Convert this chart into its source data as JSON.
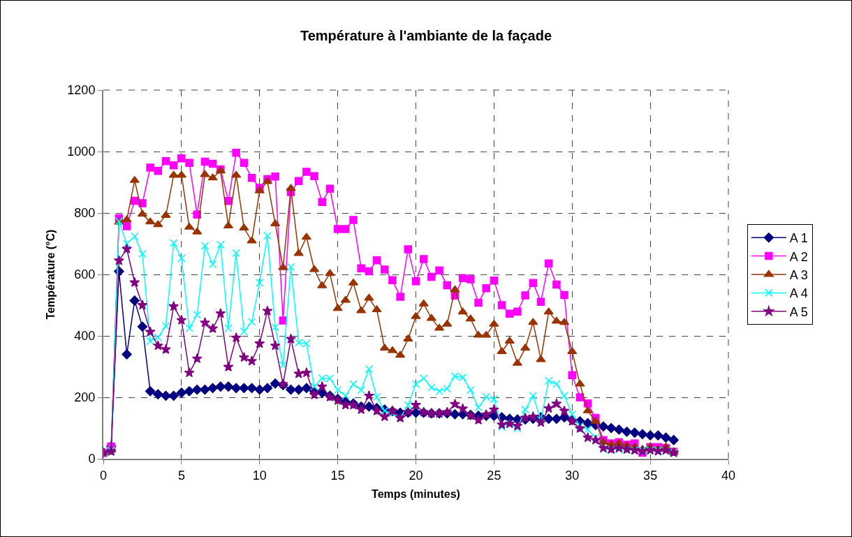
{
  "chart_data": {
    "type": "line",
    "title": "Température à l'ambiante de la façade",
    "xlabel": "Temps (minutes)",
    "ylabel": "Température (°C)",
    "x": [
      0,
      0.5,
      1,
      1.5,
      2,
      2.5,
      3,
      3.5,
      4,
      4.5,
      5,
      5.5,
      6,
      6.5,
      7,
      7.5,
      8,
      8.5,
      9,
      9.5,
      10,
      10.5,
      11,
      11.5,
      12,
      12.5,
      13,
      13.5,
      14,
      14.5,
      15,
      15.5,
      16,
      16.5,
      17,
      17.5,
      18,
      18.5,
      19,
      19.5,
      20,
      20.5,
      21,
      21.5,
      22,
      22.5,
      23,
      23.5,
      24,
      24.5,
      25,
      25.5,
      26,
      26.5,
      27,
      27.5,
      28,
      28.5,
      29,
      29.5,
      30,
      30.5,
      31,
      31.5,
      32,
      32.5,
      33,
      33.5,
      34,
      34.5,
      35,
      35.5,
      36,
      36.5
    ],
    "series": [
      {
        "name": "A 1",
        "color": "#000080",
        "marker": "diamond",
        "values": [
          20,
          40,
          610,
          340,
          515,
          430,
          220,
          210,
          205,
          205,
          215,
          220,
          225,
          225,
          230,
          235,
          235,
          230,
          230,
          230,
          225,
          230,
          245,
          240,
          225,
          225,
          230,
          220,
          215,
          205,
          195,
          185,
          180,
          170,
          170,
          165,
          160,
          155,
          150,
          150,
          150,
          150,
          148,
          148,
          148,
          145,
          145,
          143,
          140,
          140,
          140,
          135,
          130,
          128,
          128,
          130,
          135,
          130,
          130,
          135,
          126,
          122,
          116,
          110,
          105,
          100,
          95,
          88,
          85,
          80,
          76,
          76,
          69,
          61
        ]
      },
      {
        "name": "A 2",
        "color": "#ff00ff",
        "marker": "square",
        "values": [
          20,
          40,
          783,
          757,
          840,
          832,
          948,
          937,
          969,
          955,
          978,
          963,
          795,
          967,
          960,
          942,
          839,
          996,
          963,
          914,
          882,
          910,
          919,
          450,
          868,
          904,
          934,
          920,
          836,
          879,
          748,
          748,
          777,
          620,
          610,
          646,
          616,
          581,
          527,
          682,
          578,
          650,
          592,
          613,
          565,
          531,
          588,
          584,
          508,
          555,
          580,
          500,
          472,
          479,
          532,
          572,
          511,
          636,
          567,
          533,
          272,
          200,
          180,
          133,
          61,
          50,
          54,
          46,
          50,
          20,
          38,
          38,
          35,
          23
        ]
      },
      {
        "name": "A 3",
        "color": "#993300",
        "marker": "triangle",
        "values": [
          20,
          28,
          770,
          778,
          906,
          796,
          771,
          762,
          792,
          923,
          923,
          754,
          738,
          925,
          914,
          937,
          758,
          923,
          751,
          709,
          872,
          902,
          765,
          622,
          880,
          668,
          721,
          616,
          563,
          603,
          489,
          516,
          572,
          482,
          523,
          485,
          360,
          352,
          337,
          390,
          463,
          504,
          457,
          425,
          438,
          550,
          478,
          455,
          402,
          402,
          438,
          349,
          383,
          311,
          360,
          444,
          323,
          478,
          448,
          444,
          349,
          243,
          156,
          122,
          54,
          46,
          50,
          42,
          38,
          31,
          38,
          31,
          38,
          23
        ]
      },
      {
        "name": "A 4",
        "color": "#00ffff",
        "marker": "cross",
        "values": [
          20,
          27,
          773,
          700,
          724,
          667,
          383,
          395,
          432,
          702,
          653,
          425,
          468,
          693,
          633,
          697,
          425,
          670,
          414,
          446,
          573,
          726,
          428,
          305,
          624,
          378,
          375,
          235,
          262,
          262,
          224,
          205,
          243,
          224,
          292,
          201,
          156,
          148,
          133,
          175,
          243,
          262,
          232,
          220,
          228,
          269,
          265,
          224,
          167,
          201,
          194,
          103,
          114,
          99,
          160,
          205,
          126,
          254,
          243,
          205,
          145,
          107,
          95,
          69,
          31,
          30,
          30,
          28,
          28,
          28,
          28,
          28,
          25,
          20
        ]
      },
      {
        "name": "A 5",
        "color": "#800080",
        "marker": "star",
        "values": [
          20,
          24,
          645,
          683,
          574,
          500,
          413,
          368,
          356,
          496,
          451,
          280,
          326,
          443,
          424,
          473,
          299,
          394,
          330,
          318,
          375,
          481,
          368,
          243,
          390,
          277,
          280,
          208,
          235,
          201,
          190,
          175,
          175,
          160,
          205,
          156,
          137,
          156,
          133,
          152,
          175,
          152,
          148,
          148,
          152,
          178,
          163,
          141,
          126,
          144,
          160,
          111,
          114,
          107,
          133,
          137,
          118,
          164,
          179,
          156,
          122,
          99,
          69,
          61,
          35,
          31,
          35,
          31,
          28,
          25,
          28,
          25,
          28,
          20
        ]
      }
    ],
    "xlim": [
      0,
      40
    ],
    "xticks": [
      0,
      5,
      10,
      15,
      20,
      25,
      30,
      35,
      40
    ],
    "ylim": [
      0,
      1200
    ],
    "yticks": [
      0,
      200,
      400,
      600,
      800,
      1000,
      1200
    ],
    "grid": true,
    "legend": "right"
  }
}
